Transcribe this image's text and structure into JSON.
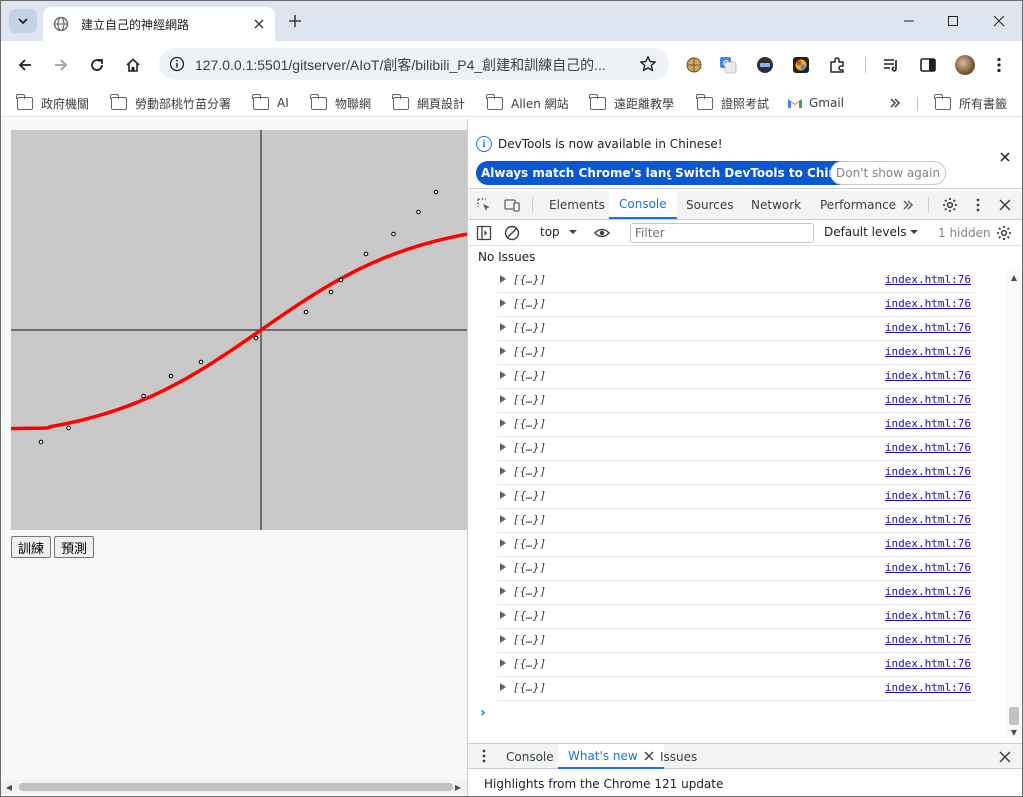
{
  "browser": {
    "tab_title": "建立自己的神經網路",
    "url": "127.0.0.1:5501/gitserver/AIoT/創客/bilibili_P4_創建和訓練自己的...",
    "bookmarks": [
      {
        "label": "政府機關"
      },
      {
        "label": "勞動部桃竹苗分署"
      },
      {
        "label": "AI"
      },
      {
        "label": "物聯網"
      },
      {
        "label": "網頁設計"
      },
      {
        "label": "Allen 網站"
      },
      {
        "label": "遠距離教學"
      },
      {
        "label": "證照考試"
      },
      {
        "label": "Gmail"
      },
      {
        "label": "所有書籤"
      }
    ]
  },
  "page": {
    "train_button": "訓練",
    "predict_button": "預測",
    "curve_color": "#ff0000",
    "background_color": "#c8c8c8"
  },
  "devtools": {
    "infobar_text": "DevTools is now available in Chinese!",
    "btn_match_language": "Always match Chrome's language",
    "btn_switch_chinese": "Switch DevTools to Chinese",
    "btn_dont_show": "Don't show again",
    "tabs": [
      "Elements",
      "Console",
      "Sources",
      "Network",
      "Performance"
    ],
    "active_tab": "Console",
    "context": "top",
    "filter_placeholder": "Filter",
    "levels": "Default levels",
    "hidden": "1 hidden",
    "no_issues": "No Issues",
    "log_entry_text": "[{…}]",
    "log_source": "index.html:76",
    "log_count": 18,
    "prompt": "›",
    "drawer_tabs": [
      "Console",
      "What's new",
      "Issues"
    ],
    "drawer_active": "What's new",
    "drawer_content": "Highlights from the Chrome 121 update"
  }
}
